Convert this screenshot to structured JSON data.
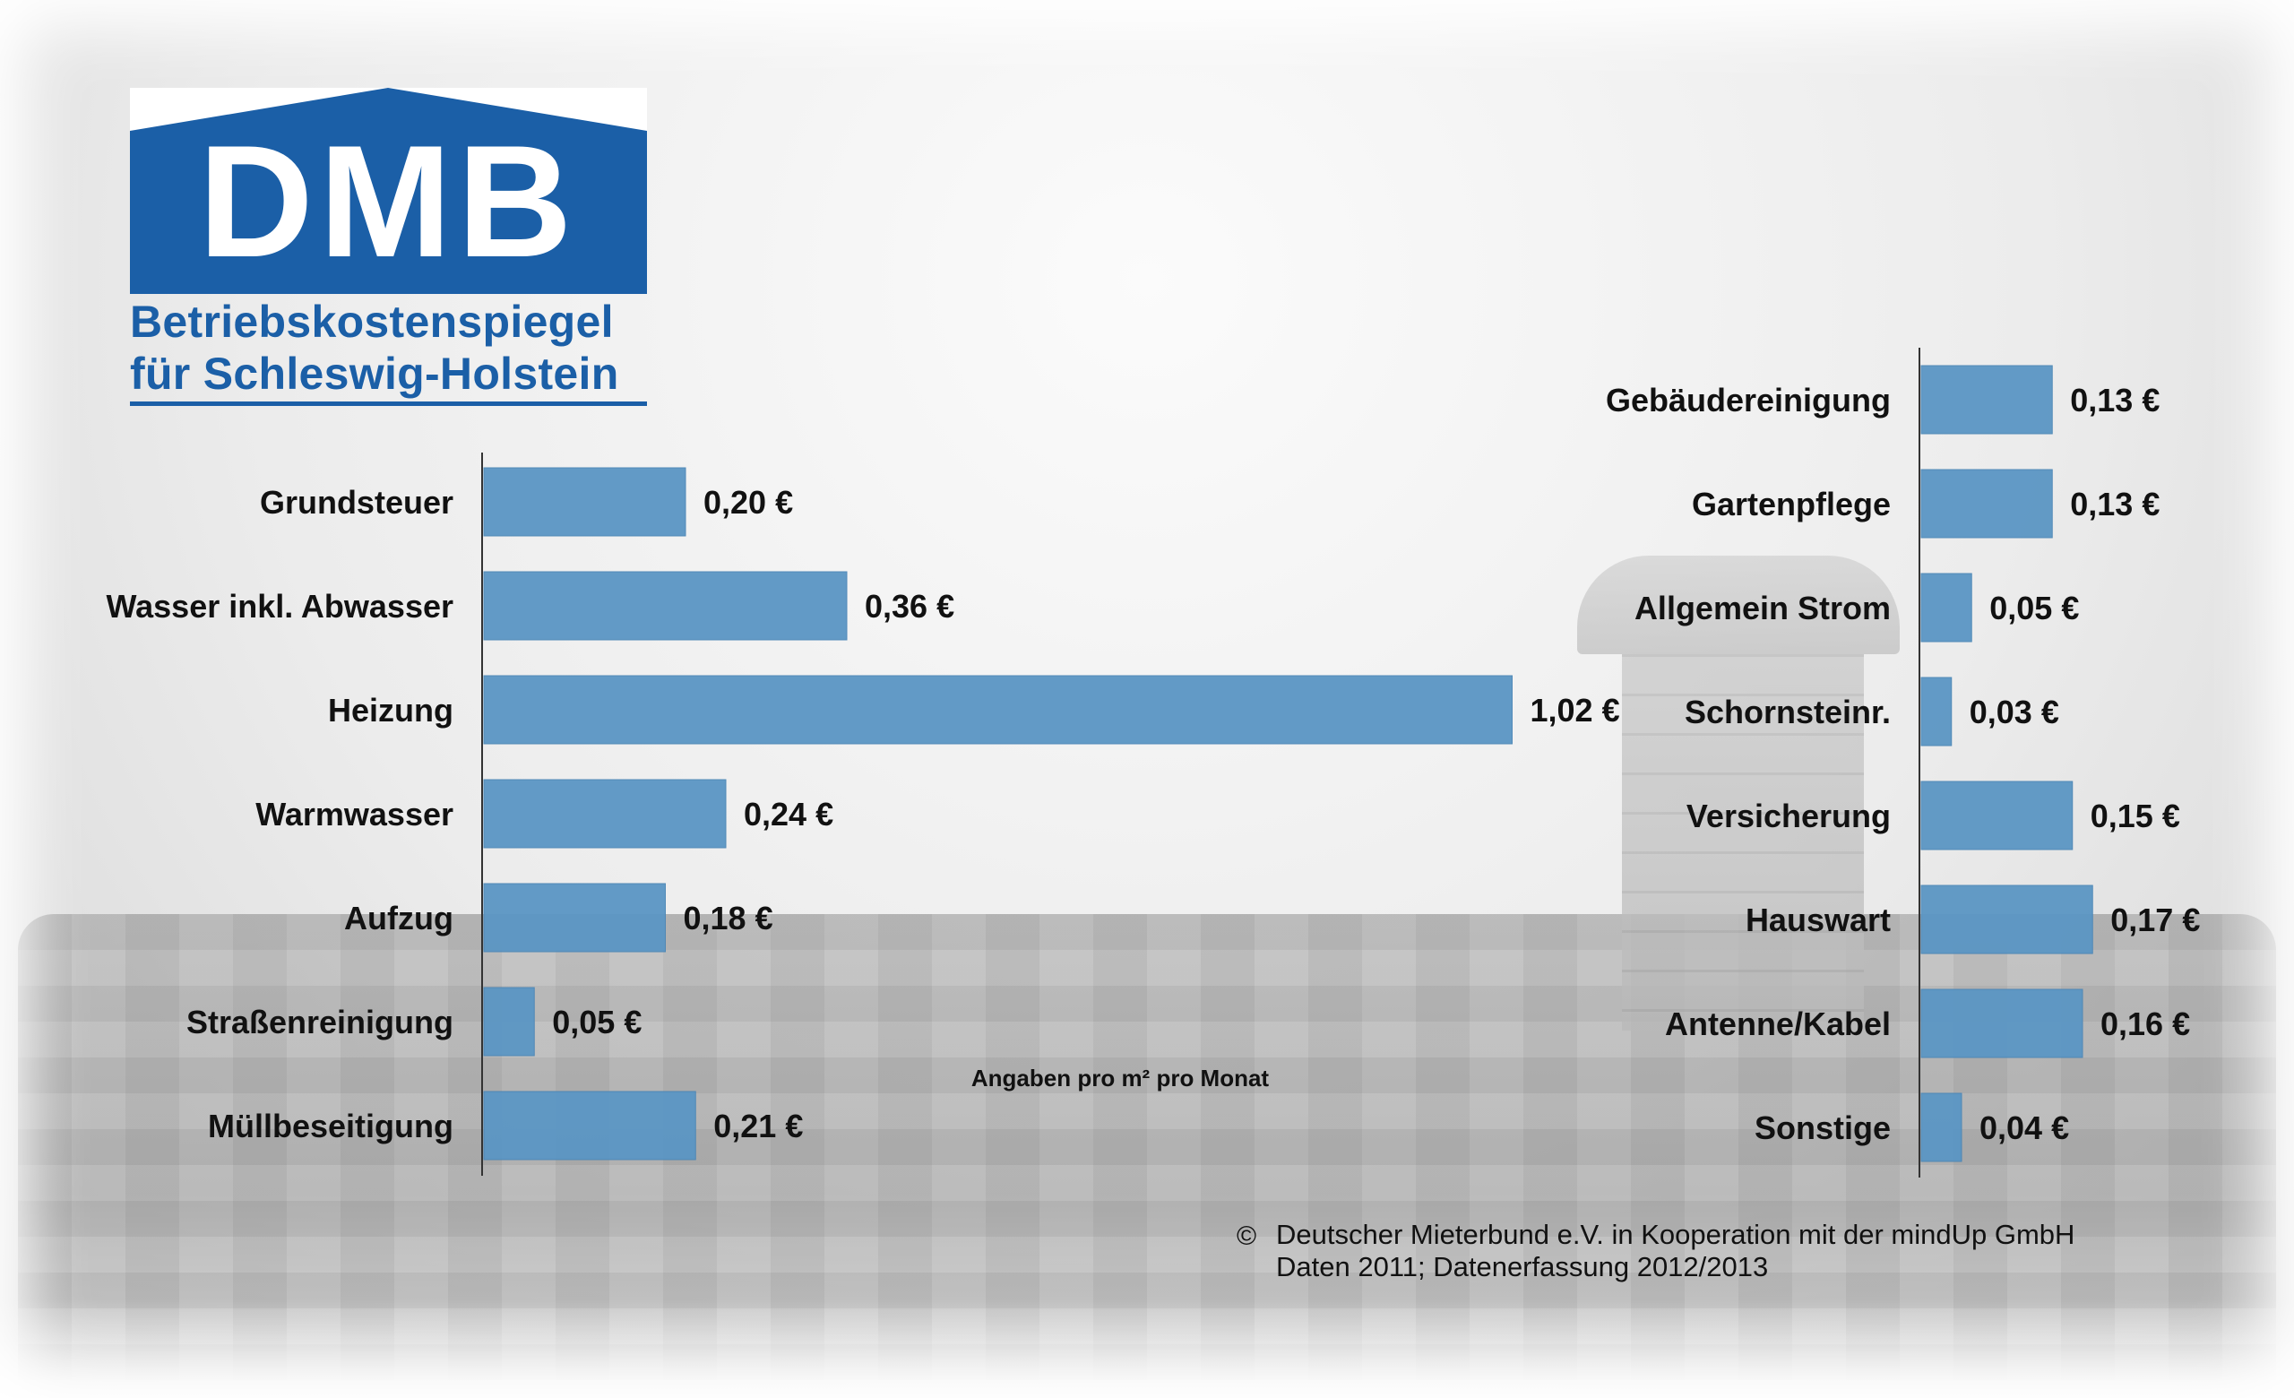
{
  "logo": {
    "text": "DMB",
    "subtitle_line1": "Betriebskostenspiegel",
    "subtitle_line2": "für Schleswig-Holstein",
    "brand_color": "#1b5fa7"
  },
  "colors": {
    "bar": "#5b96c4",
    "bar_edge": "#4a85b5",
    "axis": "#333333"
  },
  "unit_note": "Angaben pro m² pro Monat",
  "footer": {
    "symbol": "©",
    "line1": "Deutscher Mieterbund e.V. in Kooperation mit der mindUp GmbH",
    "line2": "Daten 2011; Datenerfassung 2012/2013"
  },
  "chart_data": [
    {
      "type": "bar",
      "orientation": "horizontal",
      "categories": [
        "Grundsteuer",
        "Wasser inkl. Abwasser",
        "Heizung",
        "Warmwasser",
        "Aufzug",
        "Straßenreinigung",
        "Müllbeseitigung"
      ],
      "values": [
        0.2,
        0.36,
        1.02,
        0.24,
        0.18,
        0.05,
        0.21
      ],
      "value_labels": [
        "0,20 €",
        "0,36 €",
        "1,02 €",
        "0,24 €",
        "0,18 €",
        "0,05 €",
        "0,21 €"
      ],
      "xlim": [
        0,
        1.02
      ]
    },
    {
      "type": "bar",
      "orientation": "horizontal",
      "categories": [
        "Gebäudereinigung",
        "Gartenpflege",
        "Allgemein Strom",
        "Schornsteinr.",
        "Versicherung",
        "Hauswart",
        "Antenne/Kabel",
        "Sonstige"
      ],
      "values": [
        0.13,
        0.13,
        0.05,
        0.03,
        0.15,
        0.17,
        0.16,
        0.04
      ],
      "value_labels": [
        "0,13 €",
        "0,13 €",
        "0,05 €",
        "0,03 €",
        "0,15 €",
        "0,17 €",
        "0,16 €",
        "0,04 €"
      ],
      "xlim": [
        0,
        1.02
      ]
    }
  ]
}
